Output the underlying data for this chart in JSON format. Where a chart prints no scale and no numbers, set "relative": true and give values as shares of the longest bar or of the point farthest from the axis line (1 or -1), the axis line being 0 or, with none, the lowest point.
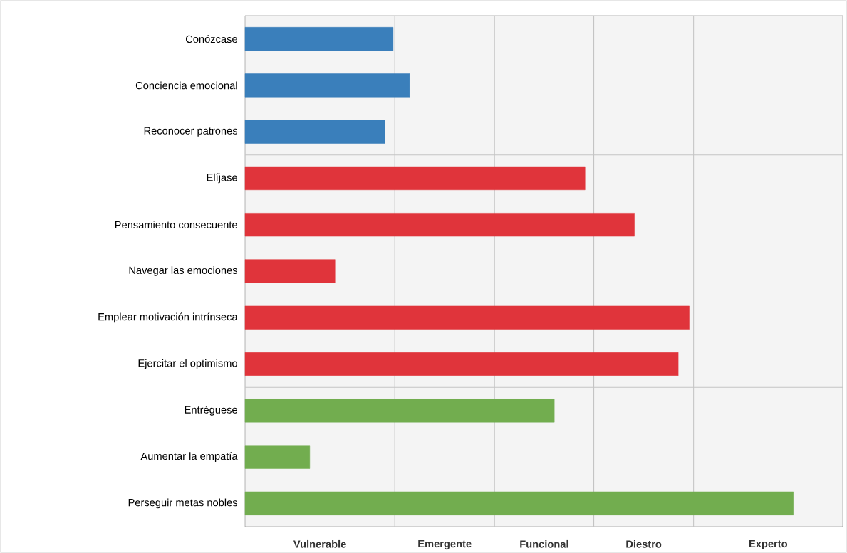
{
  "chart_data": {
    "type": "bar",
    "orientation": "horizontal",
    "relative": true,
    "categories": [
      "Conózcase",
      "Conciencia emocional",
      "Reconocer patrones",
      "Elíjase",
      "Pensamiento consecuente",
      "Navegar las emociones",
      "Emplear motivación intrínseca",
      "Ejercitar el optimismo",
      "Entréguese",
      "Aumentar la empatía",
      "Perseguir metas nobles"
    ],
    "values": [
      0.27,
      0.3,
      0.255,
      0.62,
      0.71,
      0.164,
      0.81,
      0.79,
      0.564,
      0.118,
      1
    ],
    "colors": [
      "#3a7fbb",
      "#3a7fbb",
      "#3a7fbb",
      "#e0343b",
      "#e0343b",
      "#e0343b",
      "#e0343b",
      "#e0343b",
      "#72ad4f",
      "#72ad4f",
      "#72ad4f"
    ],
    "annotations": [
      "Vulnerable",
      "Emergente",
      "Funcional",
      "Diestro",
      "Experto"
    ],
    "ref_lines": [
      {
        "axis": "x",
        "value": 0.273,
        "color": "#c4c4c4"
      },
      {
        "axis": "x",
        "value": 0.455,
        "color": "#c4c4c4"
      },
      {
        "axis": "x",
        "value": 0.636,
        "color": "#c4c4c4"
      },
      {
        "axis": "x",
        "value": 0.818,
        "color": "#c4c4c4"
      }
    ]
  }
}
